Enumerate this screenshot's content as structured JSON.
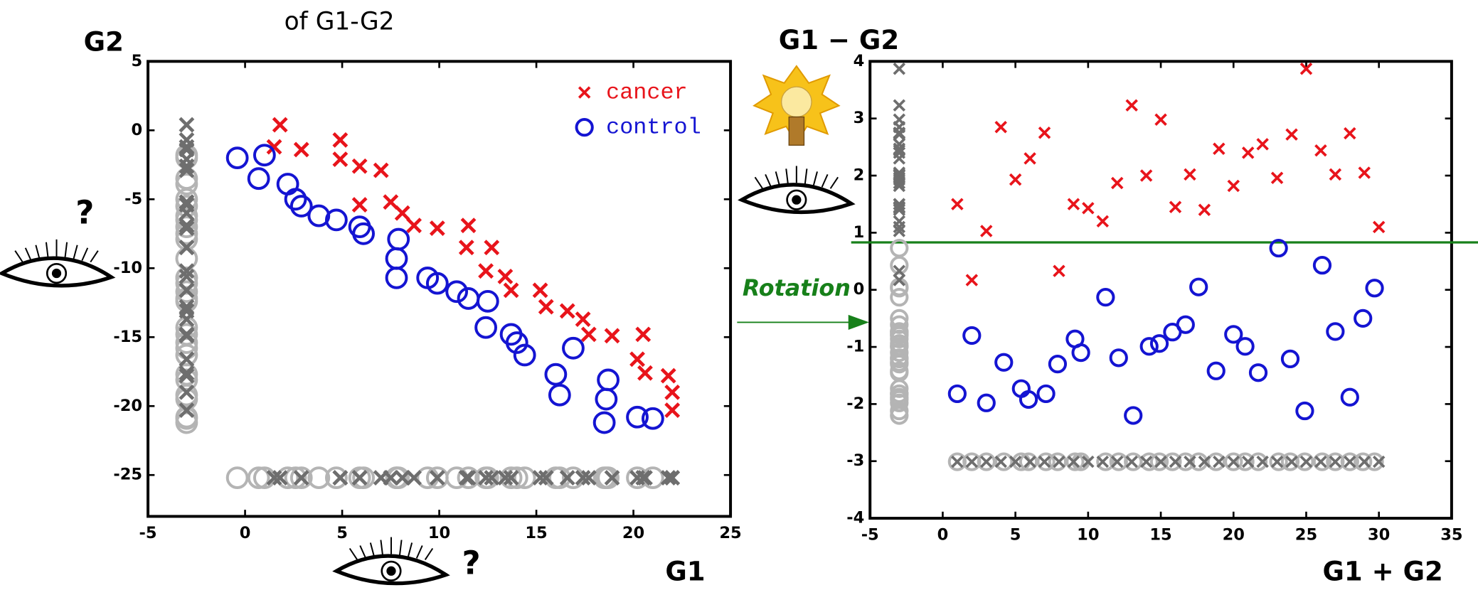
{
  "figure": {
    "caption": "of G1-G2",
    "rotation_label": "Rotation",
    "question_marks": [
      "?",
      "?"
    ]
  },
  "chart_data": [
    {
      "type": "scatter",
      "x_label": "G1",
      "y_label": "G2",
      "legend": "upper right",
      "xlim": [
        -5,
        25
      ],
      "xticks": [
        -5,
        0,
        5,
        10,
        15,
        20,
        25
      ],
      "ylim": [
        -28,
        5
      ],
      "yticks": [
        5,
        0,
        -5,
        -10,
        -15,
        -20,
        -25
      ],
      "series": [
        {
          "name": "cancer",
          "marker": "x",
          "color": "#e8141b",
          "projection_color": "#6e6e6e",
          "x": [
            1.8,
            1.5,
            2.9,
            4.9,
            4.9,
            5.9,
            7.0,
            5.9,
            7.5,
            8.1,
            8.7,
            9.9,
            11.5,
            11.4,
            12.7,
            12.4,
            13.4,
            13.7,
            15.2,
            15.5,
            16.6,
            17.4,
            17.7,
            18.9,
            20.5,
            20.2,
            20.6,
            21.8,
            22.0,
            22.0
          ],
          "values": [
            0.4,
            -1.2,
            -1.4,
            -0.7,
            -2.1,
            -2.6,
            -2.9,
            -5.4,
            -5.2,
            -6.0,
            -6.9,
            -7.1,
            -6.9,
            -8.5,
            -8.5,
            -10.2,
            -10.6,
            -11.6,
            -11.6,
            -12.8,
            -13.1,
            -13.7,
            -14.8,
            -14.9,
            -14.8,
            -16.6,
            -17.6,
            -17.8,
            -19.0,
            -20.3
          ]
        },
        {
          "name": "control",
          "marker": "o",
          "color": "#1414d2",
          "projection_color": "#b4b4b4",
          "x": [
            -0.4,
            1.0,
            0.7,
            2.2,
            2.6,
            2.9,
            3.8,
            4.7,
            5.9,
            6.1,
            7.9,
            7.8,
            7.8,
            9.4,
            9.9,
            10.9,
            11.5,
            12.5,
            12.4,
            13.7,
            14.0,
            14.4,
            16.9,
            16.0,
            16.2,
            18.7,
            18.6,
            18.5,
            20.2,
            21.0
          ],
          "values": [
            -2.0,
            -1.8,
            -3.5,
            -3.9,
            -5.0,
            -5.5,
            -6.2,
            -6.5,
            -7.0,
            -7.5,
            -7.9,
            -9.3,
            -10.7,
            -10.7,
            -11.1,
            -11.7,
            -12.2,
            -12.4,
            -14.3,
            -14.8,
            -15.4,
            -16.3,
            -15.8,
            -17.7,
            -19.2,
            -18.1,
            -19.5,
            -21.2,
            -20.8,
            -20.9
          ]
        }
      ]
    },
    {
      "type": "scatter",
      "x_label": "G1 + G2",
      "y_label": "G1 − G2",
      "xlim": [
        -5,
        35
      ],
      "xticks": [
        -5,
        0,
        5,
        10,
        15,
        20,
        25,
        30,
        35
      ],
      "ylim": [
        -4,
        4
      ],
      "yticks": [
        4,
        3,
        2,
        1,
        0,
        -1,
        -2,
        -3,
        -4
      ],
      "hline": 0.83,
      "hline_color": "#17801a",
      "series": [
        {
          "marker": "x",
          "color": "#e8141b",
          "projection_color": "#6e6e6e",
          "x": [
            1,
            2,
            3,
            4,
            5,
            6,
            7,
            8,
            9,
            10,
            11,
            12,
            13,
            14,
            15,
            16,
            17,
            18,
            19,
            20,
            21,
            22,
            23,
            24,
            25,
            26,
            27,
            28,
            29,
            30
          ],
          "values": [
            1.5,
            0.17,
            1.03,
            2.85,
            1.93,
            2.3,
            2.75,
            0.33,
            1.5,
            1.43,
            1.2,
            1.87,
            3.23,
            2.0,
            2.98,
            1.45,
            2.02,
            1.4,
            2.47,
            1.82,
            2.4,
            2.55,
            1.96,
            2.72,
            3.87,
            2.44,
            2.02,
            2.74,
            2.05,
            1.1
          ]
        },
        {
          "marker": "o",
          "color": "#1414d2",
          "projection_color": "#b4b4b4",
          "x": [
            1,
            2,
            3,
            4.2,
            5.4,
            5.9,
            7.1,
            7.9,
            9.1,
            9.5,
            11.2,
            12.1,
            13.1,
            14.2,
            14.9,
            15.8,
            16.7,
            17.6,
            18.8,
            20,
            20.8,
            21.7,
            23.1,
            23.9,
            24.9,
            26.1,
            27,
            28,
            28.9,
            29.7
          ],
          "values": [
            -1.82,
            -0.8,
            -1.98,
            -1.27,
            -1.73,
            -1.92,
            -1.82,
            -1.3,
            -0.86,
            -1.1,
            -0.13,
            -1.19,
            -2.2,
            -0.99,
            -0.94,
            -0.74,
            -0.61,
            0.05,
            -1.42,
            -0.78,
            -0.99,
            -1.45,
            0.73,
            -1.21,
            -2.12,
            0.43,
            -0.73,
            -1.88,
            -0.5,
            0.03
          ]
        }
      ]
    }
  ]
}
